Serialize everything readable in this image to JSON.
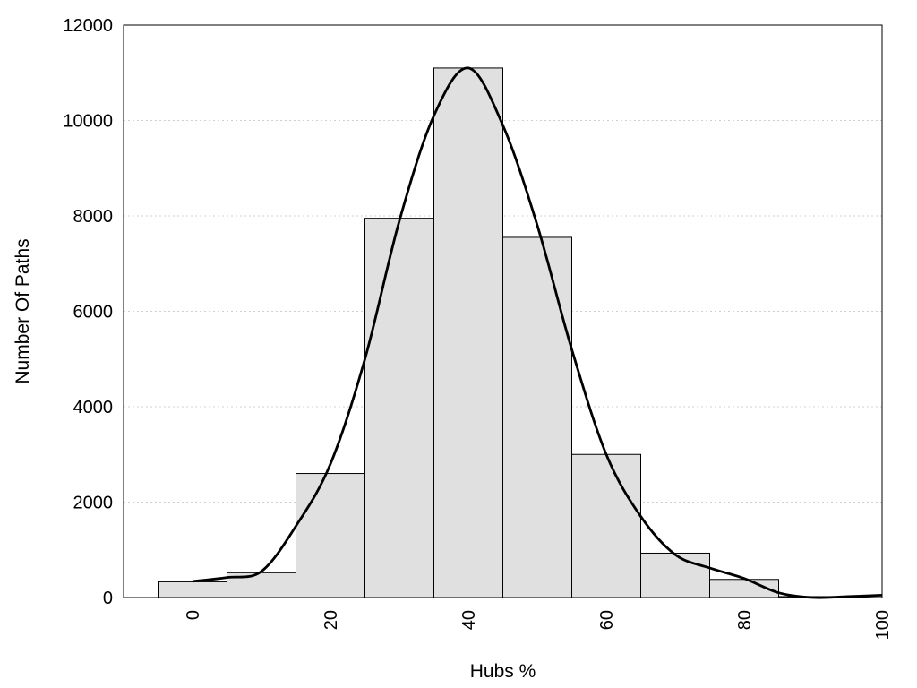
{
  "chart_data": {
    "type": "bar",
    "subtype": "histogram-with-density-curve",
    "xlabel": "Hubs %",
    "ylabel": "Number Of Paths",
    "xlim": [
      -10,
      100
    ],
    "ylim": [
      0,
      12000
    ],
    "x_ticks": [
      "0",
      "20",
      "40",
      "60",
      "80",
      "100"
    ],
    "y_ticks": [
      "0",
      "2000",
      "4000",
      "6000",
      "8000",
      "10000",
      "12000"
    ],
    "grid": "horizontal dotted",
    "bin_width": 10,
    "bins": [
      {
        "center": 0,
        "value": 330
      },
      {
        "center": 10,
        "value": 520
      },
      {
        "center": 20,
        "value": 2600
      },
      {
        "center": 30,
        "value": 7950
      },
      {
        "center": 40,
        "value": 11100
      },
      {
        "center": 50,
        "value": 7550
      },
      {
        "center": 60,
        "value": 3000
      },
      {
        "center": 70,
        "value": 930
      },
      {
        "center": 80,
        "value": 380
      },
      {
        "center": 90,
        "value": 20
      }
    ],
    "density_curve": {
      "x": [
        0,
        5,
        10,
        15,
        20,
        25,
        30,
        35,
        40,
        45,
        50,
        55,
        60,
        65,
        70,
        75,
        80,
        85,
        90,
        95,
        100
      ],
      "y": [
        340,
        420,
        550,
        1500,
        2800,
        5000,
        7900,
        10100,
        11100,
        9900,
        7800,
        5200,
        3000,
        1700,
        900,
        620,
        400,
        100,
        0,
        20,
        50
      ]
    },
    "colors": {
      "bar_fill": "#e0e0e0",
      "bar_stroke": "#000000",
      "curve": "#000000",
      "grid": "#d0d0d0"
    }
  }
}
